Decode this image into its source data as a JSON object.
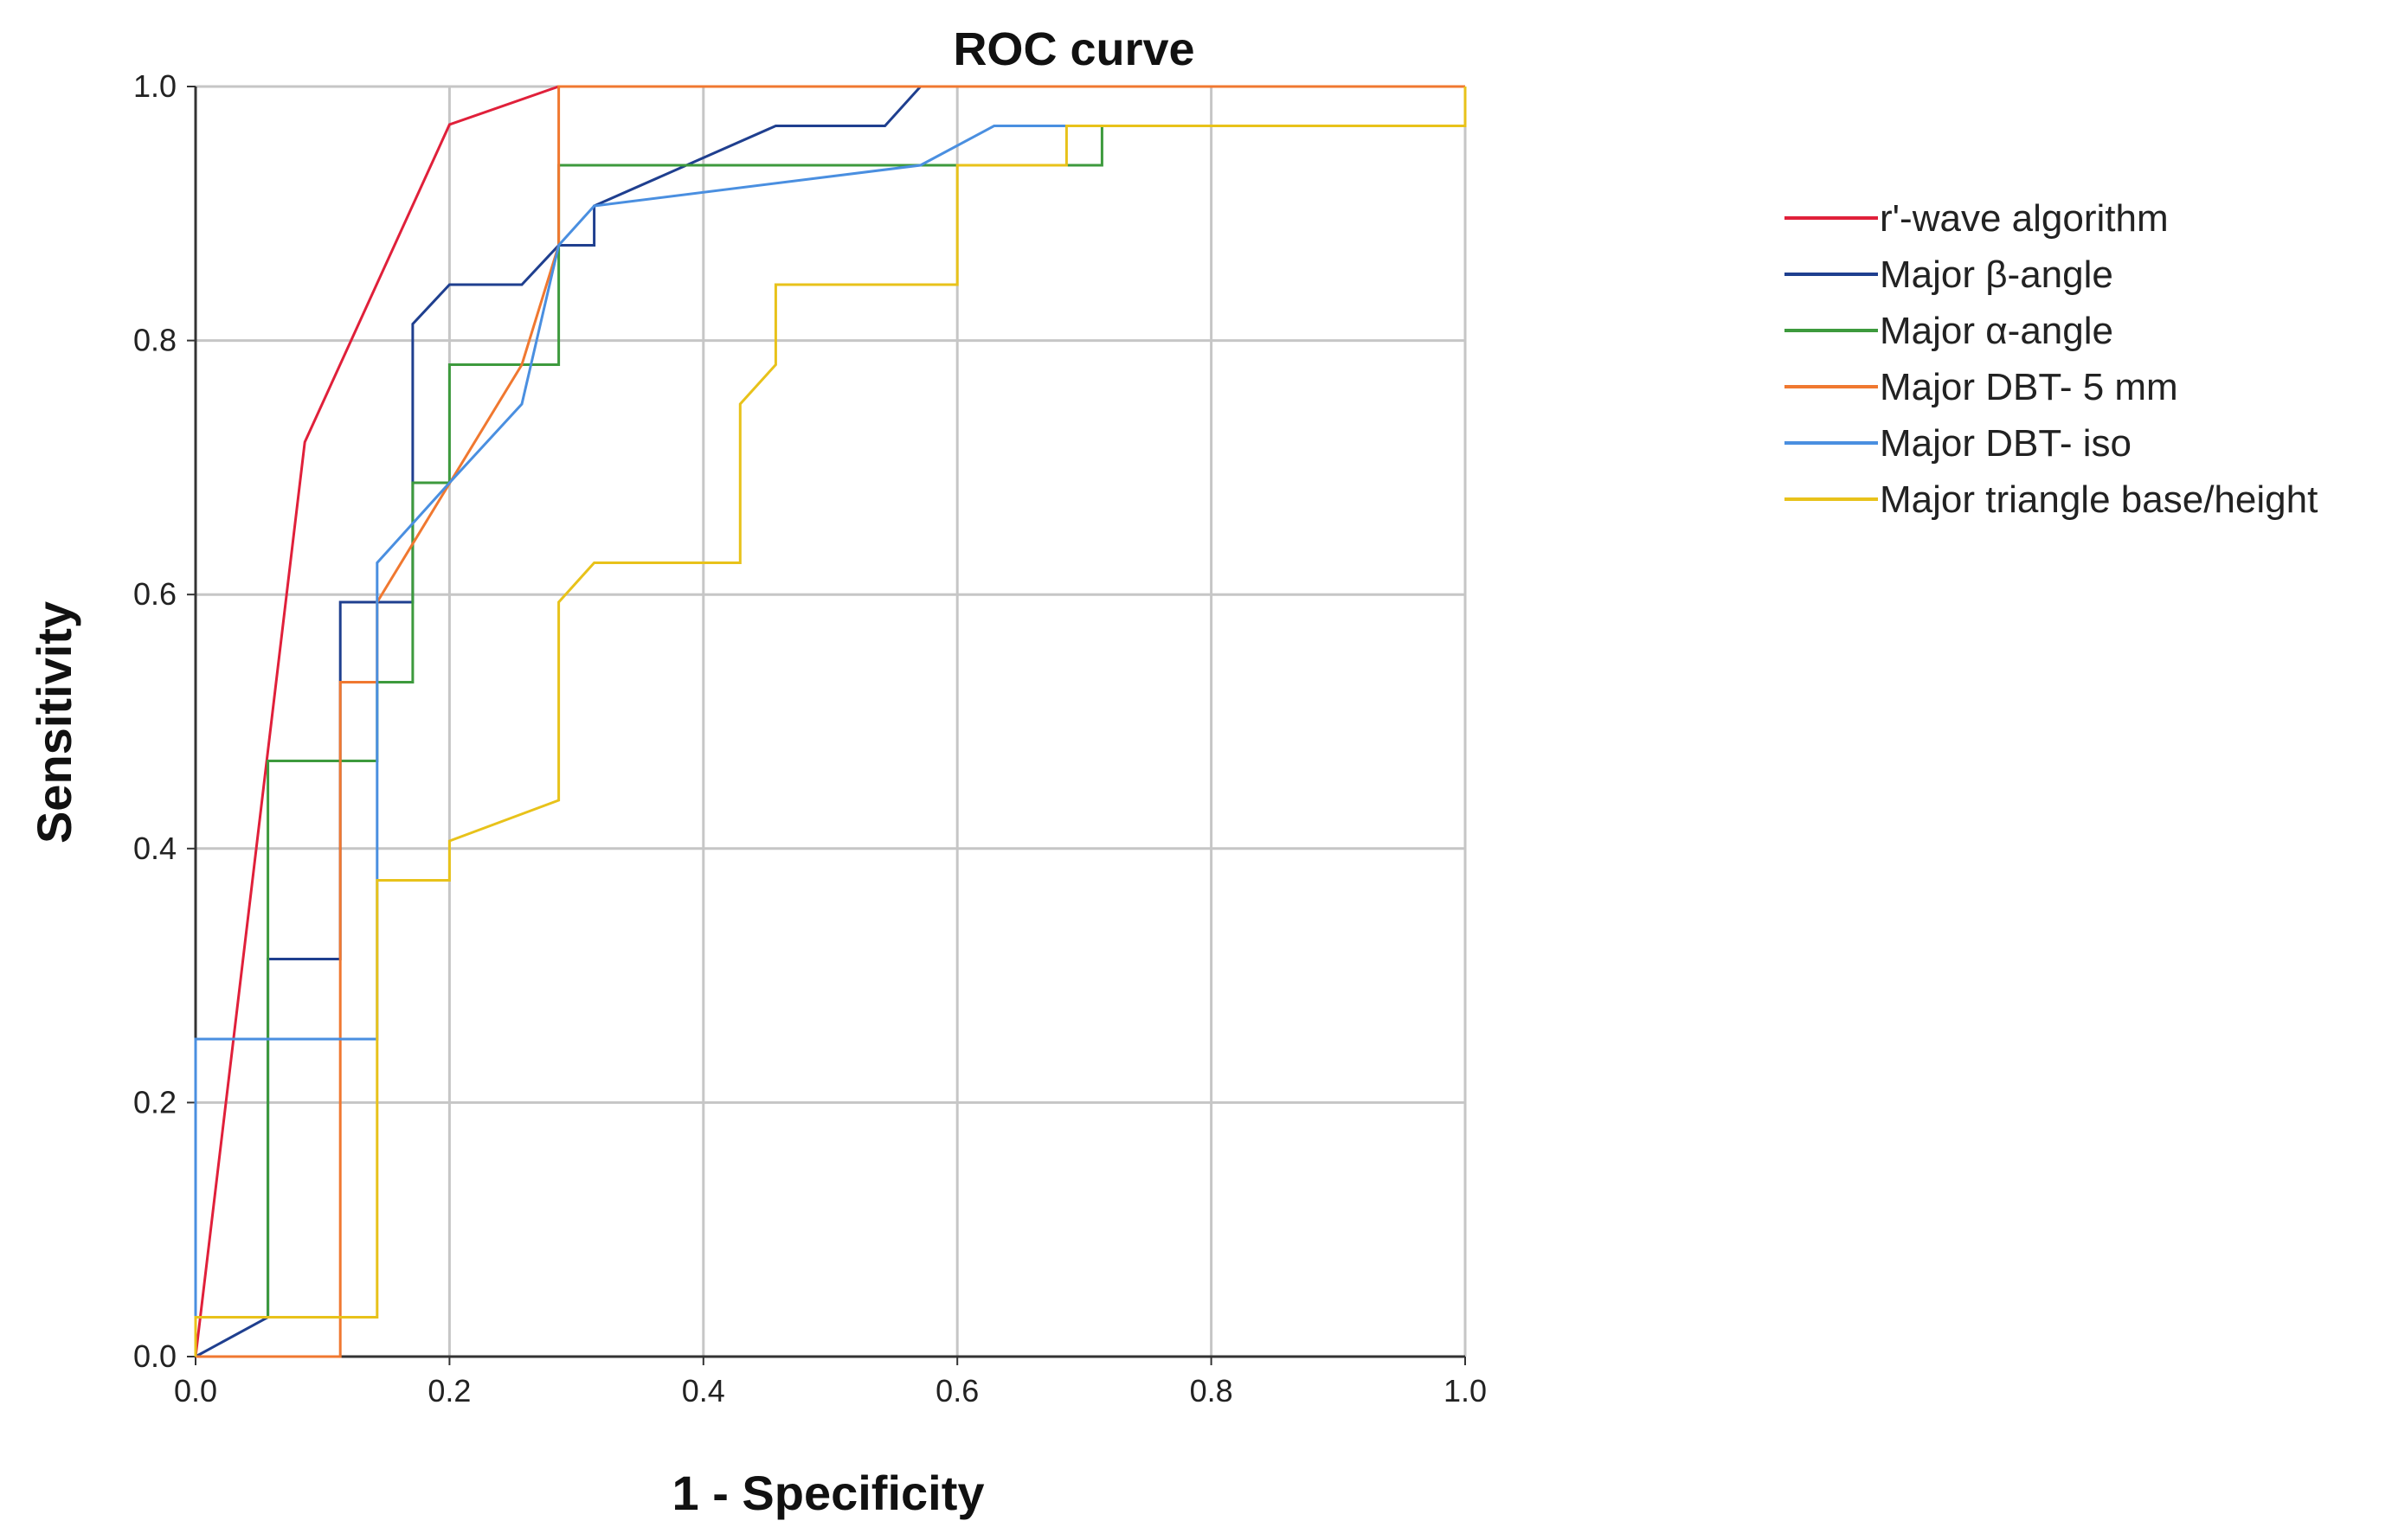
{
  "chart_data": {
    "type": "line",
    "title": "ROC curve",
    "xlabel": "1 - Specificity",
    "ylabel": "Sensitivity",
    "xlim": [
      0,
      1
    ],
    "ylim": [
      0,
      1
    ],
    "xticks": [
      "0.0",
      "0.2",
      "0.4",
      "0.6",
      "0.8",
      "1.0"
    ],
    "yticks": [
      "0.0",
      "0.2",
      "0.4",
      "0.6",
      "0.8",
      "1.0"
    ],
    "grid": true,
    "legend_position": "right",
    "series": [
      {
        "name": "r'-wave algorithm",
        "color": "#e0203a",
        "points": [
          [
            0,
            0
          ],
          [
            0.086,
            0.72
          ],
          [
            0.2,
            0.97
          ],
          [
            0.286,
            1.0
          ],
          [
            1.0,
            1.0
          ]
        ]
      },
      {
        "name": "Major β-angle",
        "color": "#1f3f8f",
        "points": [
          [
            0,
            0
          ],
          [
            0.057,
            0.031
          ],
          [
            0.057,
            0.313
          ],
          [
            0.114,
            0.313
          ],
          [
            0.114,
            0.594
          ],
          [
            0.171,
            0.594
          ],
          [
            0.171,
            0.813
          ],
          [
            0.2,
            0.844
          ],
          [
            0.257,
            0.844
          ],
          [
            0.286,
            0.875
          ],
          [
            0.314,
            0.875
          ],
          [
            0.314,
            0.906
          ],
          [
            0.457,
            0.969
          ],
          [
            0.543,
            0.969
          ],
          [
            0.571,
            1.0
          ],
          [
            1.0,
            1.0
          ]
        ]
      },
      {
        "name": "Major α-angle",
        "color": "#3d9a3d",
        "points": [
          [
            0,
            0
          ],
          [
            0,
            0.031
          ],
          [
            0.057,
            0.031
          ],
          [
            0.057,
            0.469
          ],
          [
            0.143,
            0.469
          ],
          [
            0.143,
            0.531
          ],
          [
            0.171,
            0.531
          ],
          [
            0.171,
            0.688
          ],
          [
            0.2,
            0.688
          ],
          [
            0.2,
            0.781
          ],
          [
            0.286,
            0.781
          ],
          [
            0.286,
            0.938
          ],
          [
            0.714,
            0.938
          ],
          [
            0.714,
            0.969
          ],
          [
            1.0,
            0.969
          ],
          [
            1.0,
            1.0
          ]
        ]
      },
      {
        "name": "Major DBT- 5 mm",
        "color": "#f07830",
        "points": [
          [
            0,
            0
          ],
          [
            0.114,
            0
          ],
          [
            0.114,
            0.531
          ],
          [
            0.143,
            0.531
          ],
          [
            0.143,
            0.594
          ],
          [
            0.257,
            0.781
          ],
          [
            0.286,
            0.875
          ],
          [
            0.286,
            1.0
          ],
          [
            1.0,
            1.0
          ]
        ]
      },
      {
        "name": "Major DBT- iso",
        "color": "#4a8fe0",
        "points": [
          [
            0,
            0
          ],
          [
            0,
            0.25
          ],
          [
            0.143,
            0.25
          ],
          [
            0.143,
            0.375
          ],
          [
            0.143,
            0.625
          ],
          [
            0.2,
            0.688
          ],
          [
            0.257,
            0.75
          ],
          [
            0.286,
            0.875
          ],
          [
            0.314,
            0.906
          ],
          [
            0.571,
            0.938
          ],
          [
            0.629,
            0.969
          ],
          [
            1.0,
            0.969
          ],
          [
            1.0,
            1.0
          ]
        ]
      },
      {
        "name": "Major triangle base/height",
        "color": "#e8c21a",
        "points": [
          [
            0,
            0
          ],
          [
            0,
            0.031
          ],
          [
            0.143,
            0.031
          ],
          [
            0.143,
            0.375
          ],
          [
            0.2,
            0.375
          ],
          [
            0.2,
            0.406
          ],
          [
            0.286,
            0.438
          ],
          [
            0.286,
            0.594
          ],
          [
            0.314,
            0.625
          ],
          [
            0.429,
            0.625
          ],
          [
            0.429,
            0.75
          ],
          [
            0.457,
            0.781
          ],
          [
            0.457,
            0.844
          ],
          [
            0.6,
            0.844
          ],
          [
            0.6,
            0.938
          ],
          [
            0.686,
            0.938
          ],
          [
            0.686,
            0.969
          ],
          [
            1.0,
            0.969
          ],
          [
            1.0,
            1.0
          ]
        ]
      }
    ]
  }
}
